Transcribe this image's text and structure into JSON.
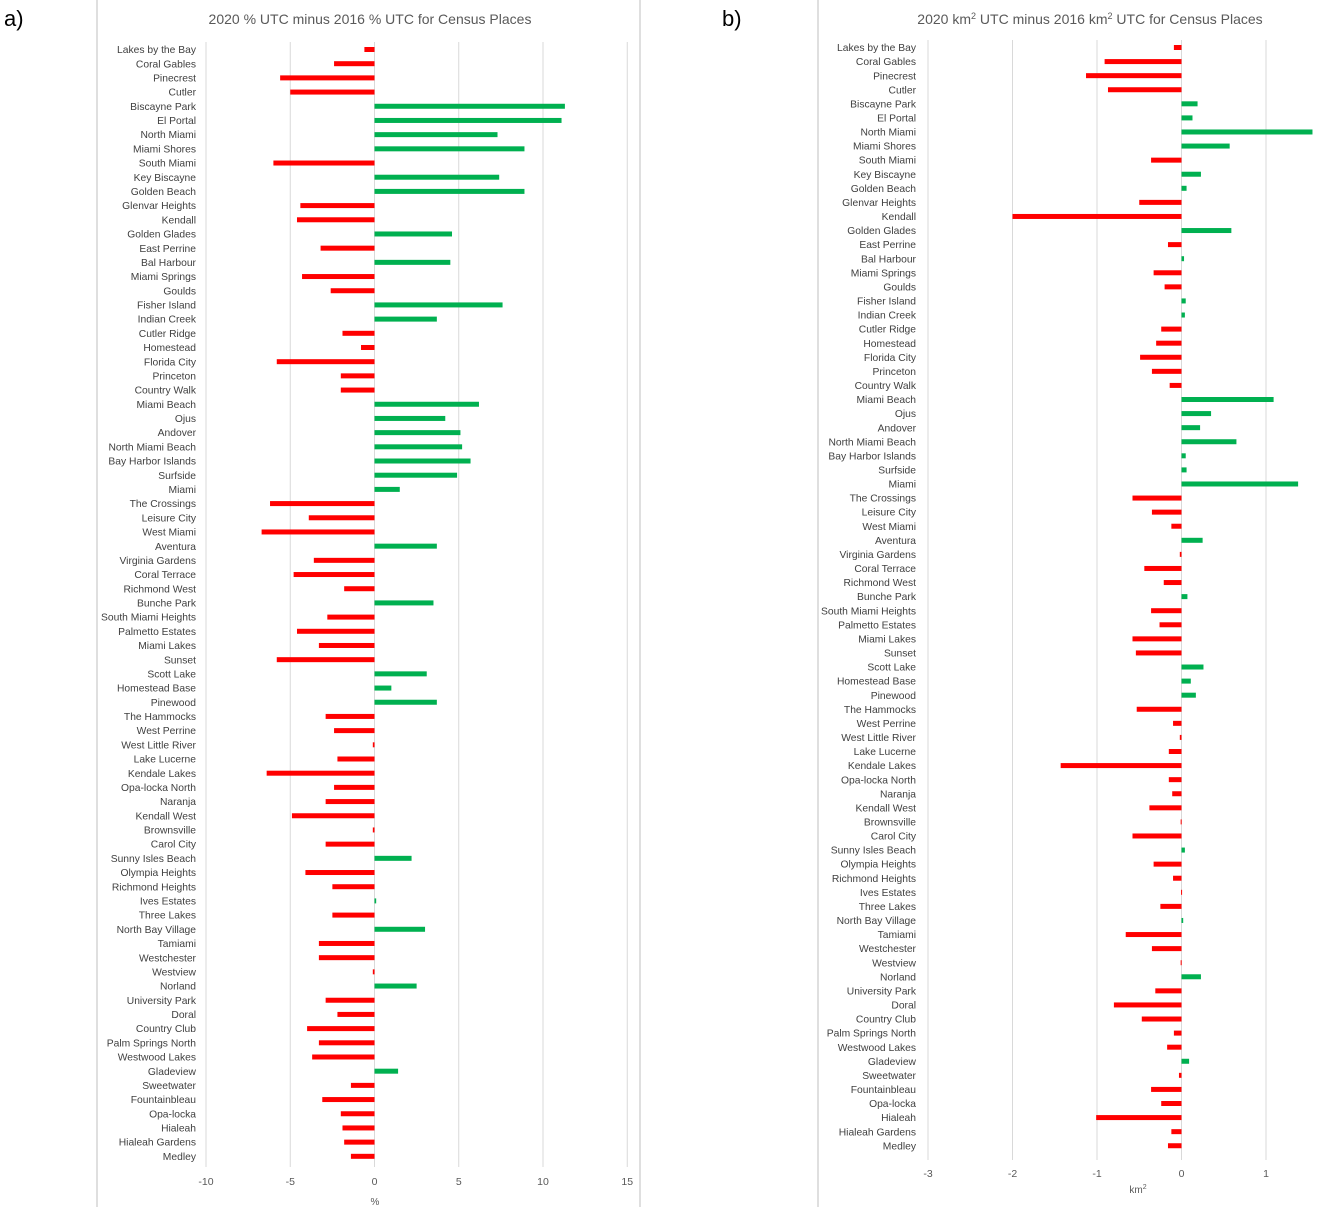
{
  "colors": {
    "positive": "#00b050",
    "negative": "#ff0000",
    "grid": "#d9d9d9",
    "frame": "#bfbfbf"
  },
  "chart_data": [
    {
      "panel": "a)",
      "type": "bar",
      "orientation": "horizontal",
      "title": "2020 % UTC minus 2016 % UTC for Census Places",
      "xlabel": "%",
      "xlim": [
        -10,
        15
      ],
      "xticks": [
        -10,
        -5,
        0,
        5,
        10,
        15
      ],
      "xtick_labels": [
        "-10",
        "-5",
        "0",
        "5",
        "10",
        "15"
      ],
      "grid": "vertical",
      "categories": [
        "Lakes by the Bay",
        "Coral Gables",
        "Pinecrest",
        "Cutler",
        "Biscayne Park",
        "El Portal",
        "North Miami",
        "Miami Shores",
        "South Miami",
        "Key Biscayne",
        "Golden Beach",
        "Glenvar Heights",
        "Kendall",
        "Golden Glades",
        "East Perrine",
        "Bal Harbour",
        "Miami Springs",
        "Goulds",
        "Fisher Island",
        "Indian Creek",
        "Cutler Ridge",
        "Homestead",
        "Florida City",
        "Princeton",
        "Country Walk",
        "Miami Beach",
        "Ojus",
        "Andover",
        "North Miami Beach",
        "Bay Harbor Islands",
        "Surfside",
        "Miami",
        "The Crossings",
        "Leisure City",
        "West Miami",
        "Aventura",
        "Virginia Gardens",
        "Coral Terrace",
        "Richmond West",
        "Bunche Park",
        "South Miami Heights",
        "Palmetto Estates",
        "Miami Lakes",
        "Sunset",
        "Scott Lake",
        "Homestead Base",
        "Pinewood",
        "The Hammocks",
        "West Perrine",
        "West Little River",
        "Lake Lucerne",
        "Kendale Lakes",
        "Opa-locka North",
        "Naranja",
        "Kendall West",
        "Brownsville",
        "Carol City",
        "Sunny Isles Beach",
        "Olympia Heights",
        "Richmond Heights",
        "Ives Estates",
        "Three Lakes",
        "North Bay Village",
        "Tamiami",
        "Westchester",
        "Westview",
        "Norland",
        "University Park",
        "Doral",
        "Country Club",
        "Palm Springs North",
        "Westwood Lakes",
        "Gladeview",
        "Sweetwater",
        "Fountainbleau",
        "Opa-locka",
        "Hialeah",
        "Hialeah Gardens",
        "Medley"
      ],
      "values": [
        -0.6,
        -2.4,
        -5.6,
        -5.0,
        11.3,
        11.1,
        7.3,
        8.9,
        -6.0,
        7.4,
        8.9,
        -4.4,
        -4.6,
        4.6,
        -3.2,
        4.5,
        -4.3,
        -2.6,
        7.6,
        3.7,
        -1.9,
        -0.8,
        -5.8,
        -2.0,
        -2.0,
        6.2,
        4.2,
        5.1,
        5.2,
        5.7,
        4.9,
        1.5,
        -6.2,
        -3.9,
        -6.7,
        3.7,
        -3.6,
        -4.8,
        -1.8,
        3.5,
        -2.8,
        -4.6,
        -3.3,
        -5.8,
        3.1,
        1.0,
        3.7,
        -2.9,
        -2.4,
        -0.1,
        -2.2,
        -6.4,
        -2.4,
        -2.9,
        -4.9,
        -0.1,
        -2.9,
        2.2,
        -4.1,
        -2.5,
        0.1,
        -2.5,
        3.0,
        -3.3,
        -3.3,
        -0.1,
        2.5,
        -2.9,
        -2.2,
        -4.0,
        -3.3,
        -3.7,
        1.4,
        -1.4,
        -3.1,
        -2.0,
        -1.9,
        -1.8,
        -1.4
      ]
    },
    {
      "panel": "b)",
      "type": "bar",
      "orientation": "horizontal",
      "title_parts": [
        "2020 km",
        "2",
        " UTC minus 2016 km",
        "2",
        " UTC for Census Places"
      ],
      "xlabel_parts": [
        "km",
        "2"
      ],
      "xlim": [
        -3,
        1.5
      ],
      "xticks": [
        -3,
        -2,
        -1,
        0,
        1
      ],
      "xtick_labels": [
        "-3",
        "-2",
        "-1",
        "0",
        "1"
      ],
      "grid": "vertical",
      "categories": [
        "Lakes by the Bay",
        "Coral Gables",
        "Pinecrest",
        "Cutler",
        "Biscayne Park",
        "El Portal",
        "North Miami",
        "Miami Shores",
        "South Miami",
        "Key Biscayne",
        "Golden Beach",
        "Glenvar Heights",
        "Kendall",
        "Golden Glades",
        "East Perrine",
        "Bal Harbour",
        "Miami Springs",
        "Goulds",
        "Fisher Island",
        "Indian Creek",
        "Cutler Ridge",
        "Homestead",
        "Florida City",
        "Princeton",
        "Country Walk",
        "Miami Beach",
        "Ojus",
        "Andover",
        "North Miami Beach",
        "Bay Harbor Islands",
        "Surfside",
        "Miami",
        "The Crossings",
        "Leisure City",
        "West Miami",
        "Aventura",
        "Virginia Gardens",
        "Coral Terrace",
        "Richmond West",
        "Bunche Park",
        "South Miami Heights",
        "Palmetto Estates",
        "Miami Lakes",
        "Sunset",
        "Scott Lake",
        "Homestead Base",
        "Pinewood",
        "The Hammocks",
        "West Perrine",
        "West Little River",
        "Lake Lucerne",
        "Kendale Lakes",
        "Opa-locka North",
        "Naranja",
        "Kendall West",
        "Brownsville",
        "Carol City",
        "Sunny Isles Beach",
        "Olympia Heights",
        "Richmond Heights",
        "Ives Estates",
        "Three Lakes",
        "North Bay Village",
        "Tamiami",
        "Westchester",
        "Westview",
        "Norland",
        "University Park",
        "Doral",
        "Country Club",
        "Palm Springs North",
        "Westwood Lakes",
        "Gladeview",
        "Sweetwater",
        "Fountainbleau",
        "Opa-locka",
        "Hialeah",
        "Hialeah Gardens",
        "Medley"
      ],
      "values": [
        -0.09,
        -0.91,
        -1.13,
        -0.87,
        0.19,
        0.13,
        1.55,
        0.57,
        -0.36,
        0.23,
        0.06,
        -0.5,
        -2.0,
        0.59,
        -0.16,
        0.03,
        -0.33,
        -0.2,
        0.05,
        0.04,
        -0.24,
        -0.3,
        -0.49,
        -0.35,
        -0.14,
        1.09,
        0.35,
        0.22,
        0.65,
        0.05,
        0.06,
        1.38,
        -0.58,
        -0.35,
        -0.12,
        0.25,
        -0.02,
        -0.44,
        -0.21,
        0.07,
        -0.36,
        -0.26,
        -0.58,
        -0.54,
        0.26,
        0.11,
        0.17,
        -0.53,
        -0.1,
        -0.02,
        -0.15,
        -1.43,
        -0.15,
        -0.11,
        -0.38,
        -0.01,
        -0.58,
        0.04,
        -0.33,
        -0.1,
        -0.005,
        -0.25,
        0.02,
        -0.66,
        -0.35,
        -0.01,
        0.23,
        -0.31,
        -0.8,
        -0.47,
        -0.09,
        -0.17,
        0.09,
        -0.03,
        -0.36,
        -0.24,
        -1.01,
        -0.12,
        -0.16
      ]
    }
  ]
}
